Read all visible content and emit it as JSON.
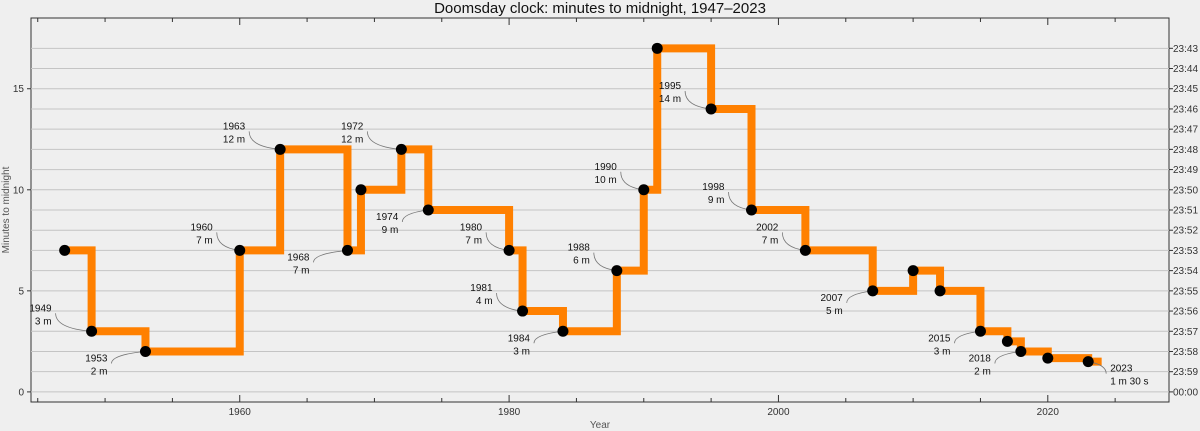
{
  "chart_data": {
    "type": "line",
    "step": true,
    "title": "Doomsday clock: minutes to midnight, 1947–2023",
    "xlabel": "Year",
    "ylabel": "Minutes to midnight",
    "xlim": [
      1944.5,
      2029
    ],
    "ylim": [
      -0.5,
      18.5
    ],
    "xticks": [
      1960,
      1980,
      2000,
      2020
    ],
    "yticks": [
      0,
      5,
      10,
      15
    ],
    "right_axis_labels": [
      "23:43",
      "23:44",
      "23:45",
      "23:46",
      "23:47",
      "23:48",
      "23:49",
      "23:50",
      "23:51",
      "23:52",
      "23:53",
      "23:54",
      "23:55",
      "23:56",
      "23:57",
      "23:58",
      "23:59",
      "00:00"
    ],
    "right_axis_values": [
      17,
      16,
      15,
      14,
      13,
      12,
      11,
      10,
      9,
      8,
      7,
      6,
      5,
      4,
      3,
      2,
      1,
      0
    ],
    "midnight_color": "#dd0000",
    "line_color": "#ff8000",
    "marker_color": "#000000",
    "grid": true,
    "series": [
      {
        "x": [
          1947,
          1949,
          1953,
          1960,
          1963,
          1968,
          1969,
          1972,
          1974,
          1980,
          1981,
          1984,
          1988,
          1990,
          1991,
          1995,
          1998,
          2002,
          2007,
          2010,
          2012,
          2015,
          2017,
          2018,
          2020,
          2023
        ],
        "y": [
          7,
          3,
          2,
          7,
          12,
          7,
          10,
          12,
          9,
          7,
          4,
          3,
          6,
          10,
          17,
          14,
          9,
          7,
          5,
          6,
          5,
          3,
          2.5,
          2,
          1.67,
          1.5
        ],
        "end_x": 2024
      }
    ],
    "annotations": [
      {
        "year": "1949",
        "value": "3 m",
        "x": 1949,
        "y": 3
      },
      {
        "year": "1953",
        "value": "2 m",
        "x": 1953,
        "y": 2
      },
      {
        "year": "1960",
        "value": "7 m",
        "x": 1960,
        "y": 7
      },
      {
        "year": "1963",
        "value": "12 m",
        "x": 1963,
        "y": 12
      },
      {
        "year": "1968",
        "value": "7 m",
        "x": 1968,
        "y": 7
      },
      {
        "year": "1972",
        "value": "12 m",
        "x": 1972,
        "y": 12
      },
      {
        "year": "1974",
        "value": "9 m",
        "x": 1974,
        "y": 9
      },
      {
        "year": "1980",
        "value": "7 m",
        "x": 1980,
        "y": 7
      },
      {
        "year": "1981",
        "value": "4 m",
        "x": 1981,
        "y": 4
      },
      {
        "year": "1984",
        "value": "3 m",
        "x": 1984,
        "y": 3
      },
      {
        "year": "1988",
        "value": "6 m",
        "x": 1988,
        "y": 6
      },
      {
        "year": "1990",
        "value": "10 m",
        "x": 1990,
        "y": 10
      },
      {
        "year": "1995",
        "value": "14 m",
        "x": 1995,
        "y": 14
      },
      {
        "year": "1998",
        "value": "9 m",
        "x": 1998,
        "y": 9
      },
      {
        "year": "2002",
        "value": "7 m",
        "x": 2002,
        "y": 7
      },
      {
        "year": "2007",
        "value": "5 m",
        "x": 2007,
        "y": 5
      },
      {
        "year": "2015",
        "value": "3 m",
        "x": 2015,
        "y": 3
      },
      {
        "year": "2018",
        "value": "2 m",
        "x": 2018,
        "y": 2
      },
      {
        "year": "2023",
        "value": "1 m 30 s",
        "x": 2023,
        "y": 1.5
      }
    ]
  }
}
